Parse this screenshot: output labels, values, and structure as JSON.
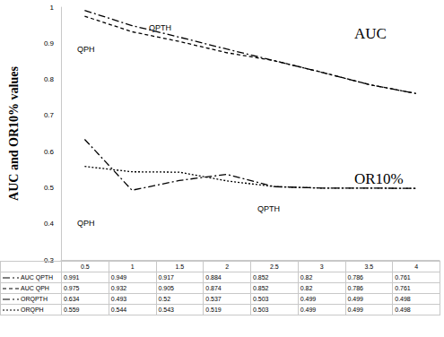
{
  "chart_data": {
    "type": "line",
    "y_label": "AUC and OR10% values",
    "categories": [
      "0.5",
      "1",
      "1.5",
      "2",
      "2.5",
      "3",
      "3.5",
      "4"
    ],
    "ylim": [
      0.3,
      1
    ],
    "yticks": [
      0.3,
      0.4,
      0.5,
      0.6,
      0.7,
      0.8,
      0.9,
      1
    ],
    "grid": false,
    "annotations": [
      "AUC",
      "OR10%",
      "QPTH",
      "QPH",
      "QPTH",
      "QPH"
    ],
    "series": [
      {
        "name": "AUC QPTH",
        "color": "#000000",
        "line_style": "dashdot",
        "values": [
          0.991,
          0.949,
          0.917,
          0.884,
          0.852,
          0.82,
          0.786,
          0.761
        ]
      },
      {
        "name": "AUC QPH",
        "color": "#000000",
        "line_style": "dashed",
        "values": [
          0.975,
          0.932,
          0.905,
          0.874,
          0.852,
          0.82,
          0.786,
          0.761
        ]
      },
      {
        "name": "ORQPTH",
        "color": "#000000",
        "line_style": "dashdot",
        "values": [
          0.634,
          0.493,
          0.52,
          0.537,
          0.503,
          0.499,
          0.499,
          0.498
        ]
      },
      {
        "name": "ORQPH",
        "color": "#000000",
        "line_style": "dotted",
        "values": [
          0.559,
          0.544,
          0.543,
          0.519,
          0.503,
          0.499,
          0.499,
          0.498
        ]
      }
    ]
  }
}
